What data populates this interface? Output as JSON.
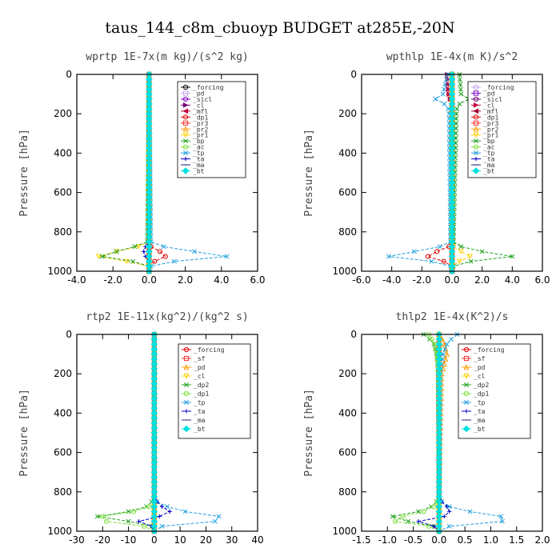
{
  "figure_title": "taus_144_c8m_cbuoyp  BUDGET at285E,-20N",
  "chart_data": [
    {
      "type": "line",
      "title": "wprtp  1E-7x(m kg)/(s^2 kg)",
      "ylabel": "Pressure [hPa]",
      "xlim": [
        -4,
        6
      ],
      "ylim": [
        1000,
        0
      ],
      "xticks": [
        "-4.0",
        "-2.0",
        "0.0",
        "2.0",
        "4.0",
        "6.0"
      ],
      "yticks": [
        "0",
        "200",
        "400",
        "600",
        "800",
        "1000"
      ],
      "legend_position": "top-right",
      "y": [
        0,
        850,
        875,
        900,
        925,
        940,
        960,
        975,
        1000
      ],
      "series": [
        {
          "name": "_forcing",
          "color": "#000000",
          "marker": "o",
          "values": [
            0,
            0,
            0,
            0,
            0,
            0,
            0,
            0,
            0
          ]
        },
        {
          "name": "_pd",
          "color": "#c8a2e8",
          "marker": "s",
          "values": [
            0,
            0,
            0,
            0,
            0,
            0,
            0,
            0,
            0
          ]
        },
        {
          "name": "_sicl",
          "color": "#8000c0",
          "marker": "o",
          "values": [
            0,
            0,
            0,
            0,
            0,
            0,
            0,
            0,
            0
          ]
        },
        {
          "name": "_cl",
          "color": "#700070",
          "marker": ">",
          "values": [
            0,
            0,
            0,
            0,
            0,
            0,
            0,
            0,
            0
          ]
        },
        {
          "name": "_mfl",
          "color": "#c00040",
          "marker": "<",
          "values": [
            0,
            0,
            0,
            0,
            0,
            0,
            0,
            0,
            0
          ]
        },
        {
          "name": "_dp1",
          "color": "#e00000",
          "marker": "o",
          "values": [
            0,
            0,
            0.1,
            0.6,
            0.9,
            0.5,
            0.1,
            0,
            0
          ]
        },
        {
          "name": "_pr3",
          "color": "#ff3030",
          "marker": "s",
          "values": [
            0,
            0,
            0,
            0,
            0,
            0,
            0,
            0,
            0
          ]
        },
        {
          "name": "_pr2",
          "color": "#ff9900",
          "marker": "^",
          "values": [
            0,
            0,
            0,
            0,
            0,
            0,
            0,
            0,
            0
          ]
        },
        {
          "name": "_pr1",
          "color": "#ffd000",
          "marker": "v",
          "values": [
            0,
            0,
            -0.6,
            -1.8,
            -2.8,
            -2.0,
            -0.5,
            0,
            0
          ]
        },
        {
          "name": "_bp",
          "color": "#20a020",
          "marker": "x",
          "values": [
            0,
            -0.1,
            -0.8,
            -1.8,
            -2.6,
            -1.5,
            -0.3,
            0,
            0
          ]
        },
        {
          "name": "_ac",
          "color": "#80e040",
          "marker": "o",
          "values": [
            0,
            0,
            0,
            0,
            0,
            0,
            0,
            0,
            0
          ]
        },
        {
          "name": "_tp",
          "color": "#20a0e0",
          "marker": "x",
          "values": [
            0,
            0.1,
            0.8,
            2.5,
            4.3,
            2.2,
            0.6,
            0.1,
            0
          ]
        },
        {
          "name": "_ta",
          "color": "#0000c0",
          "marker": "+",
          "values": [
            0,
            0,
            -0.2,
            -0.3,
            -0.2,
            -0.1,
            0,
            0,
            0
          ]
        },
        {
          "name": "_ma",
          "color": "#202080",
          "marker": "-",
          "values": [
            0,
            0,
            0,
            0,
            0,
            0,
            0,
            0,
            0
          ]
        },
        {
          "name": "_bt",
          "color": "#00e0e0",
          "marker": "d",
          "values": [
            0,
            0,
            0,
            0,
            0,
            0,
            0,
            0,
            0
          ]
        }
      ]
    },
    {
      "type": "line",
      "title": "wpthlp  1E-4x(m K)/s^2",
      "ylabel": "Pressure [hPa]",
      "xlim": [
        -6,
        6
      ],
      "ylim": [
        1000,
        0
      ],
      "xticks": [
        "-6.0",
        "-4.0",
        "-2.0",
        "0.0",
        "2.0",
        "4.0",
        "6.0"
      ],
      "yticks": [
        "0",
        "200",
        "400",
        "600",
        "800",
        "1000"
      ],
      "legend_position": "top-right",
      "y": [
        0,
        100,
        130,
        150,
        180,
        850,
        875,
        900,
        925,
        940,
        960,
        975,
        1000
      ],
      "series": [
        {
          "name": "_forcing",
          "color": "#c8a2e8",
          "marker": "o",
          "values": [
            0,
            0,
            0,
            0,
            0,
            0,
            0,
            0,
            0,
            0,
            0,
            0,
            0
          ]
        },
        {
          "name": "_pd",
          "color": "#8000c0",
          "marker": "s",
          "values": [
            0,
            0,
            0,
            0,
            0,
            0,
            0,
            0,
            0,
            0,
            0,
            0,
            0
          ]
        },
        {
          "name": "_sicl",
          "color": "#700070",
          "marker": "o",
          "values": [
            0,
            0,
            0,
            0,
            0,
            0,
            0,
            0,
            0,
            0,
            0,
            0,
            0
          ]
        },
        {
          "name": "_cl",
          "color": "#c00040",
          "marker": ">",
          "values": [
            -0.3,
            -0.2,
            -0.1,
            0,
            0,
            0,
            0,
            0,
            0,
            0,
            0,
            0,
            0
          ]
        },
        {
          "name": "_mfl",
          "color": "#a00030",
          "marker": "<",
          "values": [
            0,
            0,
            0,
            0,
            0,
            0,
            0,
            0,
            0,
            0,
            0,
            0,
            0
          ]
        },
        {
          "name": "_dp1",
          "color": "#e00000",
          "marker": "o",
          "values": [
            0,
            0,
            0,
            0,
            0,
            0,
            -0.2,
            -1.0,
            -1.6,
            -0.9,
            -0.2,
            0,
            0
          ]
        },
        {
          "name": "_pr3",
          "color": "#ff3030",
          "marker": "s",
          "values": [
            0,
            0,
            0,
            0,
            0,
            0,
            0,
            0,
            0,
            0,
            0,
            0,
            0
          ]
        },
        {
          "name": "_pr2",
          "color": "#ff9900",
          "marker": "^",
          "values": [
            0,
            0,
            0,
            0,
            0,
            0,
            0,
            0,
            0,
            0,
            0,
            0,
            0
          ]
        },
        {
          "name": "_pr1",
          "color": "#ffd000",
          "marker": "v",
          "values": [
            0,
            0,
            0,
            0,
            0,
            0,
            0.1,
            0.6,
            1.2,
            0.8,
            0.2,
            0,
            0
          ]
        },
        {
          "name": "_bp",
          "color": "#20a020",
          "marker": "x",
          "values": [
            0.5,
            0.6,
            1.2,
            0.5,
            0.3,
            0.1,
            0.6,
            2.0,
            4.0,
            2.0,
            0.5,
            0.1,
            0
          ]
        },
        {
          "name": "_ac",
          "color": "#80e040",
          "marker": "o",
          "values": [
            0,
            0,
            0,
            0,
            0,
            0,
            0,
            0,
            0,
            0,
            0,
            0,
            0
          ]
        },
        {
          "name": "_tp",
          "color": "#20a0e0",
          "marker": "x",
          "values": [
            -0.3,
            -0.6,
            -1.2,
            -0.5,
            -0.2,
            -0.1,
            -0.8,
            -2.5,
            -4.2,
            -2.2,
            -0.5,
            -0.1,
            0
          ]
        },
        {
          "name": "_ta",
          "color": "#0000c0",
          "marker": "+",
          "values": [
            0,
            0,
            0,
            0,
            0,
            0,
            0,
            0,
            0,
            0,
            0,
            0,
            0
          ]
        },
        {
          "name": "_ma",
          "color": "#202080",
          "marker": "-",
          "values": [
            0,
            0,
            0,
            0,
            0,
            0,
            0,
            0,
            0,
            0,
            0,
            0,
            0
          ]
        },
        {
          "name": "_bt",
          "color": "#00e0e0",
          "marker": "d",
          "values": [
            0,
            0,
            0,
            0,
            0,
            0,
            0,
            0,
            0,
            0,
            0,
            0,
            0
          ]
        }
      ]
    },
    {
      "type": "line",
      "title": "rtp2  1E-11x(kg^2)/(kg^2 s)",
      "ylabel": "Pressure [hPa]",
      "xlim": [
        -30,
        40
      ],
      "ylim": [
        1000,
        0
      ],
      "xticks": [
        "-30",
        "-20",
        "-10",
        "0",
        "10",
        "20",
        "30",
        "40"
      ],
      "yticks": [
        "0",
        "200",
        "400",
        "600",
        "800",
        "1000"
      ],
      "legend_position": "top-right",
      "y": [
        0,
        820,
        850,
        875,
        900,
        925,
        940,
        960,
        975,
        1000
      ],
      "series": [
        {
          "name": "_forcing",
          "color": "#e00000",
          "marker": "o",
          "values": [
            0,
            0,
            0,
            0,
            0,
            0,
            0,
            0,
            0,
            0
          ]
        },
        {
          "name": "_sf",
          "color": "#ff3030",
          "marker": "s",
          "values": [
            0,
            0,
            0,
            0,
            0,
            0,
            0,
            0,
            0,
            0
          ]
        },
        {
          "name": "_pd",
          "color": "#ff9900",
          "marker": "^",
          "values": [
            0,
            0,
            0,
            0,
            0,
            0,
            0,
            0,
            0,
            0
          ]
        },
        {
          "name": "_cl",
          "color": "#ffd000",
          "marker": "v",
          "values": [
            0,
            0,
            0,
            0,
            0,
            0,
            0,
            0,
            0,
            0
          ]
        },
        {
          "name": "_dp2",
          "color": "#20a020",
          "marker": "x",
          "values": [
            0,
            0,
            -1,
            -3,
            -10,
            -22,
            -15,
            -5,
            -1,
            0
          ]
        },
        {
          "name": "_dp1",
          "color": "#80e040",
          "marker": "o",
          "values": [
            0,
            0,
            0,
            -2,
            -8,
            -20,
            -23,
            -14,
            -4,
            0
          ]
        },
        {
          "name": "_tp",
          "color": "#20a0e0",
          "marker": "x",
          "values": [
            0,
            0,
            1,
            5,
            12,
            25,
            32,
            15,
            3,
            0
          ]
        },
        {
          "name": "_ta",
          "color": "#0000c0",
          "marker": "+",
          "values": [
            0,
            0,
            1,
            3,
            6,
            2,
            -8,
            -4,
            -1,
            0
          ]
        },
        {
          "name": "_ma",
          "color": "#202080",
          "marker": "-",
          "values": [
            0,
            0,
            0,
            0,
            0,
            0,
            0,
            0,
            0,
            0
          ]
        },
        {
          "name": "_bt",
          "color": "#00e0e0",
          "marker": "d",
          "values": [
            0,
            0,
            0,
            0,
            0,
            0,
            0,
            0,
            0,
            0
          ]
        }
      ]
    },
    {
      "type": "line",
      "title": "thlp2  1E-4x(K^2)/s",
      "ylabel": "Pressure [hPa]",
      "xlim": [
        -1.5,
        2.0
      ],
      "ylim": [
        1000,
        0
      ],
      "xticks": [
        "-1.5",
        "-1.0",
        "-0.5",
        "0.0",
        "0.5",
        "1.0",
        "1.5",
        "2.0"
      ],
      "yticks": [
        "0",
        "200",
        "400",
        "600",
        "800",
        "1000"
      ],
      "legend_position": "top-right",
      "y": [
        0,
        20,
        50,
        100,
        150,
        200,
        820,
        850,
        875,
        900,
        925,
        940,
        960,
        975,
        1000
      ],
      "series": [
        {
          "name": "_forcing",
          "color": "#e00000",
          "marker": "o",
          "values": [
            0,
            0,
            0,
            0,
            0,
            0,
            0,
            0,
            0,
            0,
            0,
            0,
            0,
            0,
            0
          ]
        },
        {
          "name": "_sf",
          "color": "#ff3030",
          "marker": "s",
          "values": [
            0,
            0,
            0,
            0,
            0,
            0,
            0,
            0,
            0,
            0,
            0,
            0,
            0,
            0,
            0
          ]
        },
        {
          "name": "_pd",
          "color": "#ff9900",
          "marker": "^",
          "values": [
            0,
            0.05,
            0.1,
            0.15,
            0.1,
            0.05,
            0,
            0,
            0,
            0,
            0,
            0,
            0,
            0,
            0
          ]
        },
        {
          "name": "_cl",
          "color": "#ffd000",
          "marker": "v",
          "values": [
            0,
            0,
            0,
            0,
            0,
            0,
            0,
            0,
            0,
            0,
            0,
            0,
            0,
            0,
            0
          ]
        },
        {
          "name": "_dp2",
          "color": "#20a020",
          "marker": "x",
          "values": [
            -0.3,
            -0.2,
            -0.1,
            -0.05,
            -0.03,
            -0.02,
            0,
            -0.05,
            -0.15,
            -0.4,
            -0.9,
            -0.8,
            -0.4,
            -0.1,
            0
          ]
        },
        {
          "name": "_dp1",
          "color": "#80e040",
          "marker": "o",
          "values": [
            -0.2,
            -0.15,
            -0.08,
            -0.05,
            -0.02,
            0,
            0,
            -0.03,
            -0.1,
            -0.3,
            -0.7,
            -1.1,
            -0.6,
            -0.2,
            0
          ]
        },
        {
          "name": "_tp",
          "color": "#20a0e0",
          "marker": "x",
          "values": [
            0.35,
            0.25,
            0.15,
            0.08,
            0.05,
            0.02,
            0,
            0.05,
            0.2,
            0.6,
            1.2,
            1.65,
            0.8,
            0.2,
            0
          ]
        },
        {
          "name": "_ta",
          "color": "#0000c0",
          "marker": "+",
          "values": [
            0,
            0,
            0,
            0,
            0,
            0,
            0,
            0.05,
            0.15,
            0.2,
            0.1,
            -0.5,
            -0.3,
            -0.1,
            0
          ]
        },
        {
          "name": "_ma",
          "color": "#202080",
          "marker": "-",
          "values": [
            0,
            0,
            0,
            0,
            0,
            0,
            0,
            0,
            0,
            0,
            0,
            0,
            0,
            0,
            0
          ]
        },
        {
          "name": "_bt",
          "color": "#00e0e0",
          "marker": "d",
          "values": [
            0,
            0,
            0,
            0,
            0,
            0,
            0,
            0,
            0,
            0,
            0,
            0,
            0,
            0,
            0
          ]
        }
      ]
    }
  ]
}
